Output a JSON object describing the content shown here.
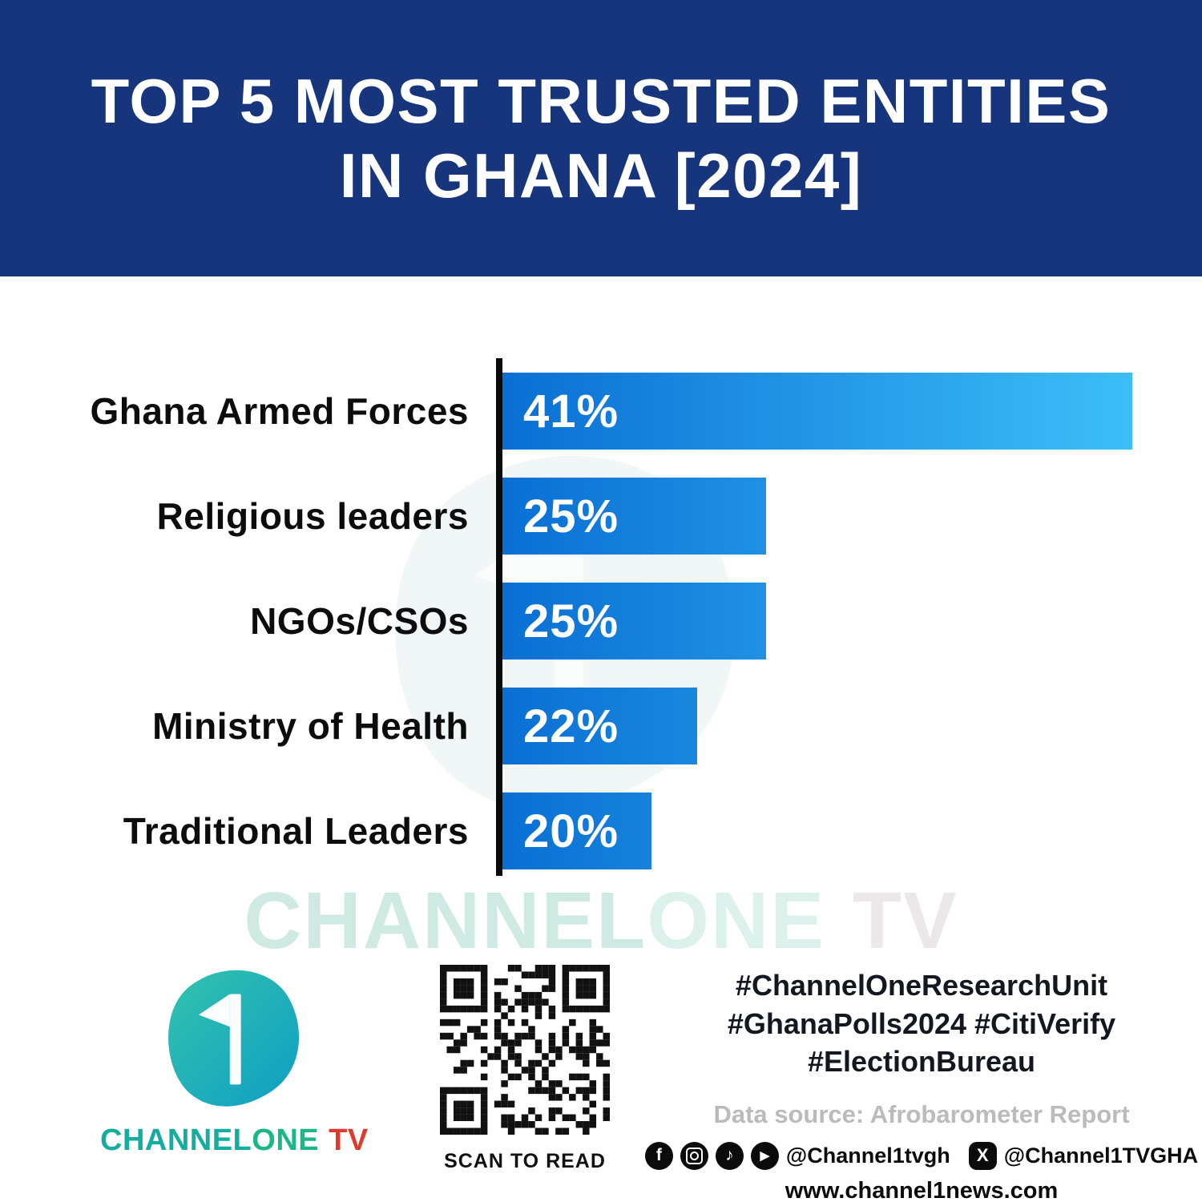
{
  "header": {
    "title_line1": "TOP 5 MOST TRUSTED ENTITIES",
    "title_line2": "IN GHANA [2024]"
  },
  "chart_data": {
    "type": "bar",
    "orientation": "horizontal",
    "title": "Top 5 Most Trusted Entities in Ghana [2024]",
    "categories": [
      "Ghana Armed Forces",
      "Religious leaders",
      "NGOs/CSOs",
      "Ministry of Health",
      "Traditional Leaders"
    ],
    "values": [
      41,
      25,
      25,
      22,
      20
    ],
    "value_labels": [
      "41%",
      "25%",
      "25%",
      "22%",
      "20%"
    ],
    "unit": "%",
    "xlim": [
      13.5,
      41.5
    ],
    "grid": false,
    "legend": false,
    "bar_color_start": "#0A6FD4",
    "bar_color_end": "#3EC0F8",
    "axis_color": "#0a0a0a"
  },
  "watermark": {
    "part1": "CHANNEL",
    "part2": "ONE",
    "part3": "TV"
  },
  "footer": {
    "logo": {
      "part_channel": "CHANNEL",
      "part_one": "ONE",
      "part_tv": "TV",
      "numeral": "1"
    },
    "qr_caption": "SCAN TO READ",
    "hashtags_line1": "#ChannelOneResearchUnit",
    "hashtags_line2": "#GhanaPolls2024 #CitiVerify",
    "hashtags_line3": "#ElectionBureau",
    "data_source": "Data source: Afrobarometer Report",
    "social": {
      "glyphs": {
        "facebook": "f",
        "tiktok": "♪",
        "youtube": "▶",
        "x": "X"
      },
      "handle_primary": "@Channel1tvgh",
      "handle_x": "@Channel1TVGHA"
    },
    "website": "www.channel1news.com"
  },
  "colors": {
    "header_bg": "#16357D",
    "accent_teal": "#15ADA0",
    "logo_tv_red": "#E03A2F",
    "watermark_teal": "#CFE9E3"
  }
}
